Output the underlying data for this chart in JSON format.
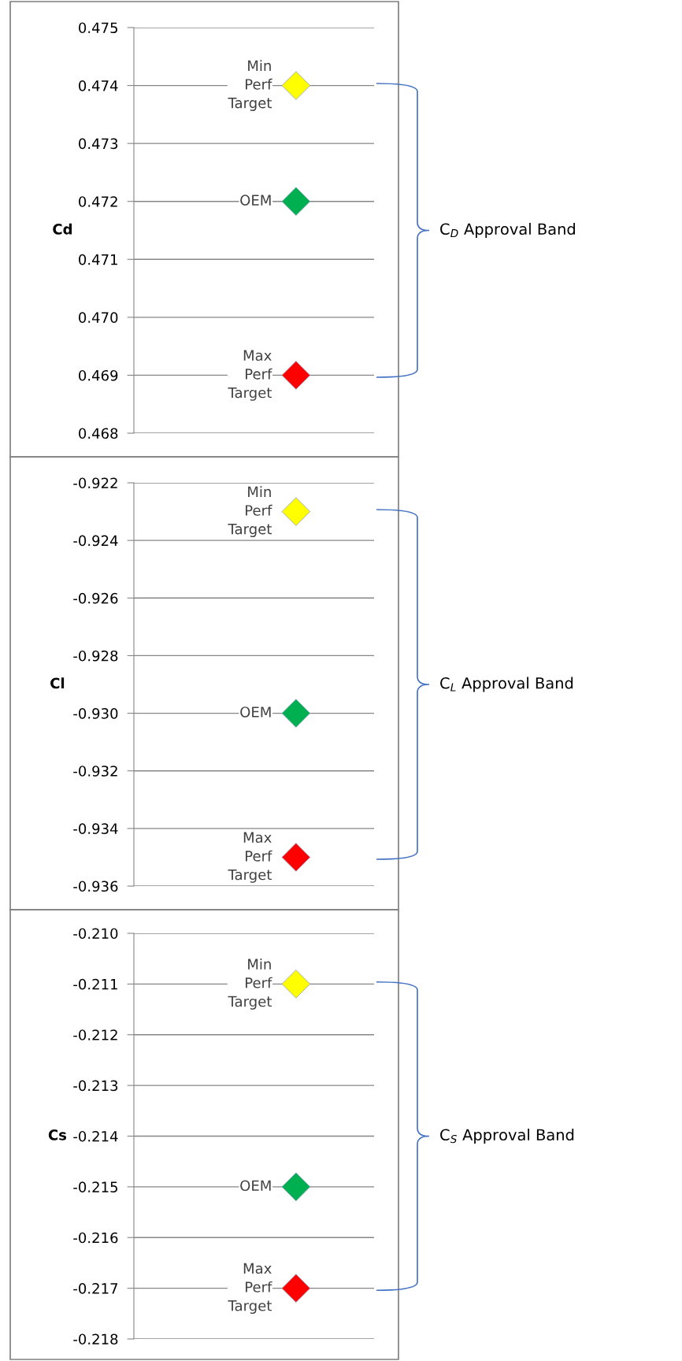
{
  "chart_data": [
    {
      "type": "scatter",
      "ylabel": "Cd",
      "categories": [
        null
      ],
      "marker": "diamond",
      "grid": "y",
      "tick_labels": "y",
      "ylim": [
        0.468,
        0.475
      ],
      "yticks": [
        {
          "value": 0.468,
          "label": "0.468"
        },
        {
          "value": 0.469,
          "label": "0.469"
        },
        {
          "value": 0.47,
          "label": "0.470"
        },
        {
          "value": 0.471,
          "label": "0.471"
        },
        {
          "value": 0.472,
          "label": "0.472"
        },
        {
          "value": 0.473,
          "label": "0.473"
        },
        {
          "value": 0.474,
          "label": "0.474"
        },
        {
          "value": 0.475,
          "label": "0.475"
        }
      ],
      "series": [
        {
          "name": "Min Perf Target",
          "color": "#ffff00",
          "values": [
            0.474
          ]
        },
        {
          "name": "OEM",
          "color": "#00b050",
          "values": [
            0.472
          ]
        },
        {
          "name": "Max Perf Target",
          "color": "#ff0000",
          "values": [
            0.469
          ]
        }
      ],
      "annotations": [
        "C$_{D}$ Approval Band"
      ]
    },
    {
      "type": "scatter",
      "ylabel": "Cl",
      "categories": [
        null
      ],
      "marker": "diamond",
      "grid": "y",
      "tick_labels": "y",
      "ylim": [
        -0.936,
        -0.922
      ],
      "yticks": [
        {
          "value": -0.936,
          "label": "-0.936"
        },
        {
          "value": -0.934,
          "label": "-0.934"
        },
        {
          "value": -0.932,
          "label": "-0.932"
        },
        {
          "value": -0.93,
          "label": "-0.930"
        },
        {
          "value": -0.928,
          "label": "-0.928"
        },
        {
          "value": -0.926,
          "label": "-0.926"
        },
        {
          "value": -0.924,
          "label": "-0.924"
        },
        {
          "value": -0.922,
          "label": "-0.922"
        }
      ],
      "series": [
        {
          "name": "Min Perf Target",
          "color": "#ffff00",
          "values": [
            -0.923
          ]
        },
        {
          "name": "OEM",
          "color": "#00b050",
          "values": [
            -0.93
          ]
        },
        {
          "name": "Max Perf Target",
          "color": "#ff0000",
          "values": [
            -0.935
          ]
        }
      ],
      "annotations": [
        "C$_{L}$ Approval Band"
      ]
    },
    {
      "type": "scatter",
      "ylabel": "Cs",
      "categories": [
        null
      ],
      "marker": "diamond",
      "grid": "y",
      "tick_labels": "y",
      "ylim": [
        -0.218,
        -0.21
      ],
      "yticks": [
        {
          "value": -0.218,
          "label": "-0.218"
        },
        {
          "value": -0.217,
          "label": "-0.217"
        },
        {
          "value": -0.216,
          "label": "-0.216"
        },
        {
          "value": -0.215,
          "label": "-0.215"
        },
        {
          "value": -0.214,
          "label": "-0.214"
        },
        {
          "value": -0.213,
          "label": "-0.213"
        },
        {
          "value": -0.212,
          "label": "-0.212"
        },
        {
          "value": -0.211,
          "label": "-0.211"
        },
        {
          "value": -0.21,
          "label": "-0.210"
        }
      ],
      "series": [
        {
          "name": "Min Perf Target",
          "color": "#ffff00",
          "values": [
            -0.211
          ]
        },
        {
          "name": "OEM",
          "color": "#00b050",
          "values": [
            -0.215
          ]
        },
        {
          "name": "Max Perf Target",
          "color": "#ff0000",
          "values": [
            -0.217
          ]
        }
      ],
      "annotations": [
        "C$_{S}$ Approval Band"
      ]
    }
  ]
}
